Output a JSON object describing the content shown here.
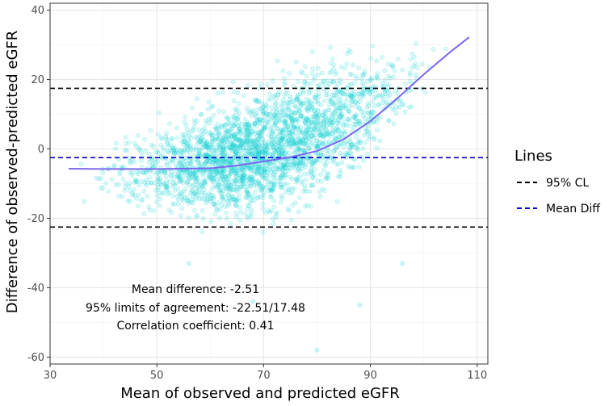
{
  "chart_data": {
    "type": "scatter",
    "xlabel": "Mean of observed and predicted eGFR",
    "ylabel": "Difference of observed-predicted eGFR",
    "xlim": [
      30,
      112
    ],
    "ylim": [
      -62,
      42
    ],
    "xticks": [
      30,
      50,
      70,
      90,
      110
    ],
    "yticks": [
      -60,
      -40,
      -20,
      0,
      20,
      40
    ],
    "grid": true,
    "point_color": "#00CED1",
    "smooth_color": "#7B68EE",
    "smooth": {
      "x": [
        33.5,
        40,
        50,
        60,
        65,
        70,
        75,
        80,
        85,
        90,
        95,
        100,
        105,
        108.5
      ],
      "y": [
        -5.7,
        -5.8,
        -5.8,
        -5.6,
        -4.8,
        -3.6,
        -2.4,
        -0.6,
        2.8,
        8.0,
        14.5,
        21.5,
        28.0,
        32.2
      ]
    },
    "reference_lines": [
      {
        "name": "95% CL",
        "y": 17.48,
        "color": "#000000"
      },
      {
        "name": "Mean Diff",
        "y": -2.51,
        "color": "#0000CD"
      },
      {
        "name": "95% CL",
        "y": -22.51,
        "color": "#000000"
      }
    ],
    "scatter_cloud": {
      "description_bins": [
        {
          "x": 35,
          "ylow": -16,
          "yhigh": 0
        },
        {
          "x": 40,
          "ylow": -19,
          "yhigh": 4
        },
        {
          "x": 45,
          "ylow": -22,
          "yhigh": 8
        },
        {
          "x": 50,
          "ylow": -24,
          "yhigh": 12
        },
        {
          "x": 55,
          "ylow": -25,
          "yhigh": 15
        },
        {
          "x": 60,
          "ylow": -26,
          "yhigh": 18
        },
        {
          "x": 65,
          "ylow": -26,
          "yhigh": 21
        },
        {
          "x": 70,
          "ylow": -25,
          "yhigh": 24
        },
        {
          "x": 75,
          "ylow": -23,
          "yhigh": 27
        },
        {
          "x": 80,
          "ylow": -20,
          "yhigh": 30
        },
        {
          "x": 85,
          "ylow": -15,
          "yhigh": 32
        },
        {
          "x": 90,
          "ylow": -8,
          "yhigh": 34
        },
        {
          "x": 95,
          "ylow": 2,
          "yhigh": 35
        },
        {
          "x": 100,
          "ylow": 10,
          "yhigh": 36
        },
        {
          "x": 104,
          "ylow": 18,
          "yhigh": 34
        }
      ]
    },
    "legend": {
      "title": "Lines",
      "position": "right",
      "items": [
        {
          "label": "95% CL",
          "color": "#000000"
        },
        {
          "label": "Mean Diff",
          "color": "#0000CD"
        }
      ]
    },
    "annotations": [
      "Mean difference: -2.51",
      "95% limits of agreement: -22.51/17.48",
      "Correlation coefficient: 0.41"
    ]
  }
}
